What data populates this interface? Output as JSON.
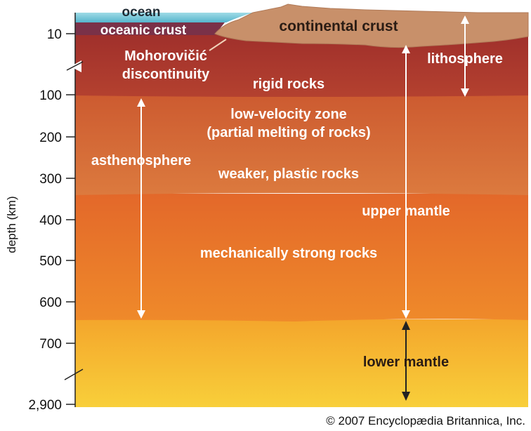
{
  "axis": {
    "title": "depth (km)",
    "ticks": [
      "10",
      "100",
      "200",
      "300",
      "400",
      "500",
      "600",
      "700",
      "2,900"
    ]
  },
  "labels": {
    "ocean": "ocean",
    "oceanic_crust": "oceanic crust",
    "continental_crust": "continental crust",
    "moho_line1": "Mohorovičić",
    "moho_line2": "discontinuity",
    "lithosphere": "lithosphere",
    "rigid_rocks": "rigid rocks",
    "low_velocity_line1": "low-velocity zone",
    "low_velocity_line2": "(partial melting of rocks)",
    "asthenosphere": "asthenosphere",
    "weaker_rocks": "weaker, plastic rocks",
    "upper_mantle": "upper mantle",
    "strong_rocks": "mechanically strong rocks",
    "lower_mantle": "lower mantle"
  },
  "credit": "© 2007 Encyclopædia Britannica, Inc.",
  "colors": {
    "ocean": "#6fc6d8",
    "oceanic_crust": "#7a3148",
    "continental_crust": "#c8906a",
    "lithosphere": "#b23a2e",
    "asthenosphere": "#d8662e",
    "upper_mantle": "#ea7424",
    "lower_mantle": "#f5b22e"
  }
}
